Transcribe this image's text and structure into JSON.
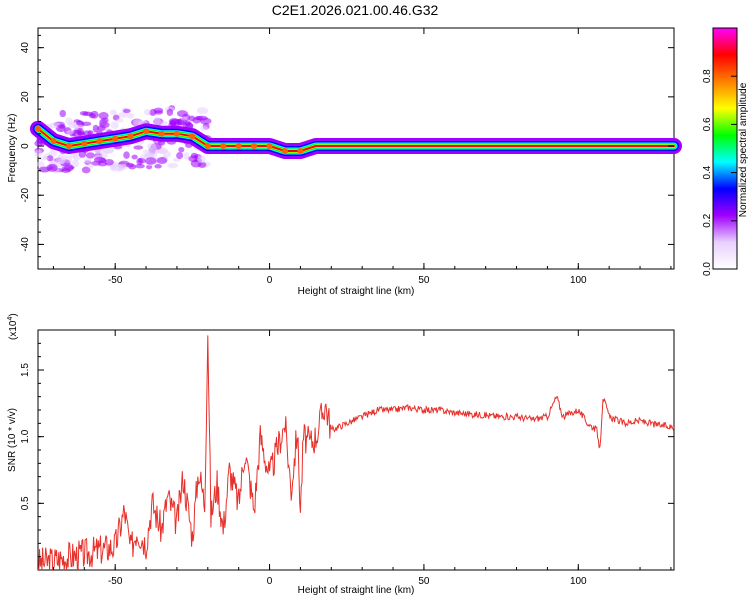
{
  "title": "C2E1.2026.021.00.46.G32",
  "chart_data": [
    {
      "type": "heatmap",
      "xlabel": "Height of straight line (km)",
      "ylabel": "Frequency (Hz)",
      "xlim": [
        -75,
        131
      ],
      "ylim": [
        -50,
        48
      ],
      "xticks": [
        -50,
        0,
        50,
        100
      ],
      "yticks": [
        -40,
        -20,
        0,
        20,
        40
      ],
      "xtick_labels": [
        "-50",
        "0",
        "50",
        "100"
      ],
      "ytick_labels": [
        "-40",
        "-20",
        "0",
        "20",
        "40"
      ],
      "ridge_points": [
        {
          "x": -75,
          "y": 7
        },
        {
          "x": -70,
          "y": 2
        },
        {
          "x": -65,
          "y": 0
        },
        {
          "x": -60,
          "y": 1
        },
        {
          "x": -55,
          "y": 2
        },
        {
          "x": -50,
          "y": 3
        },
        {
          "x": -45,
          "y": 4
        },
        {
          "x": -40,
          "y": 6
        },
        {
          "x": -35,
          "y": 5
        },
        {
          "x": -30,
          "y": 5
        },
        {
          "x": -25,
          "y": 4
        },
        {
          "x": -20,
          "y": 0
        },
        {
          "x": -15,
          "y": 0
        },
        {
          "x": -10,
          "y": 0
        },
        {
          "x": -5,
          "y": 0
        },
        {
          "x": 0,
          "y": 0
        },
        {
          "x": 5,
          "y": -2
        },
        {
          "x": 10,
          "y": -2
        },
        {
          "x": 15,
          "y": 0
        },
        {
          "x": 131,
          "y": 0
        }
      ],
      "colorbar": {
        "label": "Normalized spectral amplitude",
        "range": [
          0,
          1
        ],
        "ticks": [
          0.0,
          0.2,
          0.4,
          0.6,
          0.8
        ],
        "tick_labels": [
          "0.0",
          "0.2",
          "0.4",
          "0.6",
          "0.8"
        ],
        "colors": [
          "#ffffff",
          "#e8d0ff",
          "#a000ff",
          "#0000ff",
          "#00ffff",
          "#00ff00",
          "#ffff00",
          "#ff8000",
          "#ff0000",
          "#ff00ff"
        ]
      }
    },
    {
      "type": "line",
      "xlabel": "Height of straight line (km)",
      "ylabel": "SNR (10 * v/v)",
      "scale_label": "(x10",
      "scale_exp": "4",
      "scale_close": ")",
      "xlim": [
        -75,
        131
      ],
      "ylim": [
        0,
        1.8
      ],
      "xticks": [
        -50,
        0,
        50,
        100
      ],
      "yticks": [
        0.5,
        1.0,
        1.5
      ],
      "xtick_labels": [
        "-50",
        "0",
        "50",
        "100"
      ],
      "ytick_labels": [
        "0.5",
        "1.0",
        "1.5"
      ],
      "color": "#e8302a",
      "series": [
        {
          "x": [
            -75,
            -70,
            -65,
            -60,
            -55,
            -50,
            -47,
            -45,
            -43,
            -40,
            -38,
            -35,
            -33,
            -30,
            -28,
            -25,
            -23,
            -21,
            -20,
            -19,
            -17,
            -15,
            -13,
            -10,
            -8,
            -5,
            -3,
            0,
            3,
            5,
            7,
            9,
            10,
            11,
            13,
            15,
            18,
            20,
            25,
            30,
            35,
            40,
            45,
            50,
            55,
            60,
            65,
            70,
            75,
            80,
            85,
            90,
            93,
            95,
            100,
            103,
            106,
            107,
            108,
            110,
            115,
            120,
            125,
            131
          ],
          "y": [
            0.05,
            0.07,
            0.1,
            0.12,
            0.15,
            0.18,
            0.45,
            0.15,
            0.3,
            0.2,
            0.5,
            0.3,
            0.55,
            0.35,
            0.7,
            0.25,
            0.75,
            0.5,
            1.8,
            0.4,
            0.65,
            0.3,
            0.75,
            0.5,
            0.9,
            0.45,
            1.0,
            0.7,
            0.95,
            1.1,
            0.6,
            1.05,
            0.45,
            1.0,
            0.95,
            1.0,
            1.25,
            1.05,
            1.1,
            1.15,
            1.2,
            1.2,
            1.22,
            1.2,
            1.2,
            1.18,
            1.17,
            1.16,
            1.15,
            1.15,
            1.13,
            1.15,
            1.3,
            1.15,
            1.2,
            1.1,
            1.05,
            0.9,
            1.3,
            1.15,
            1.1,
            1.12,
            1.09,
            1.07
          ]
        }
      ]
    }
  ]
}
